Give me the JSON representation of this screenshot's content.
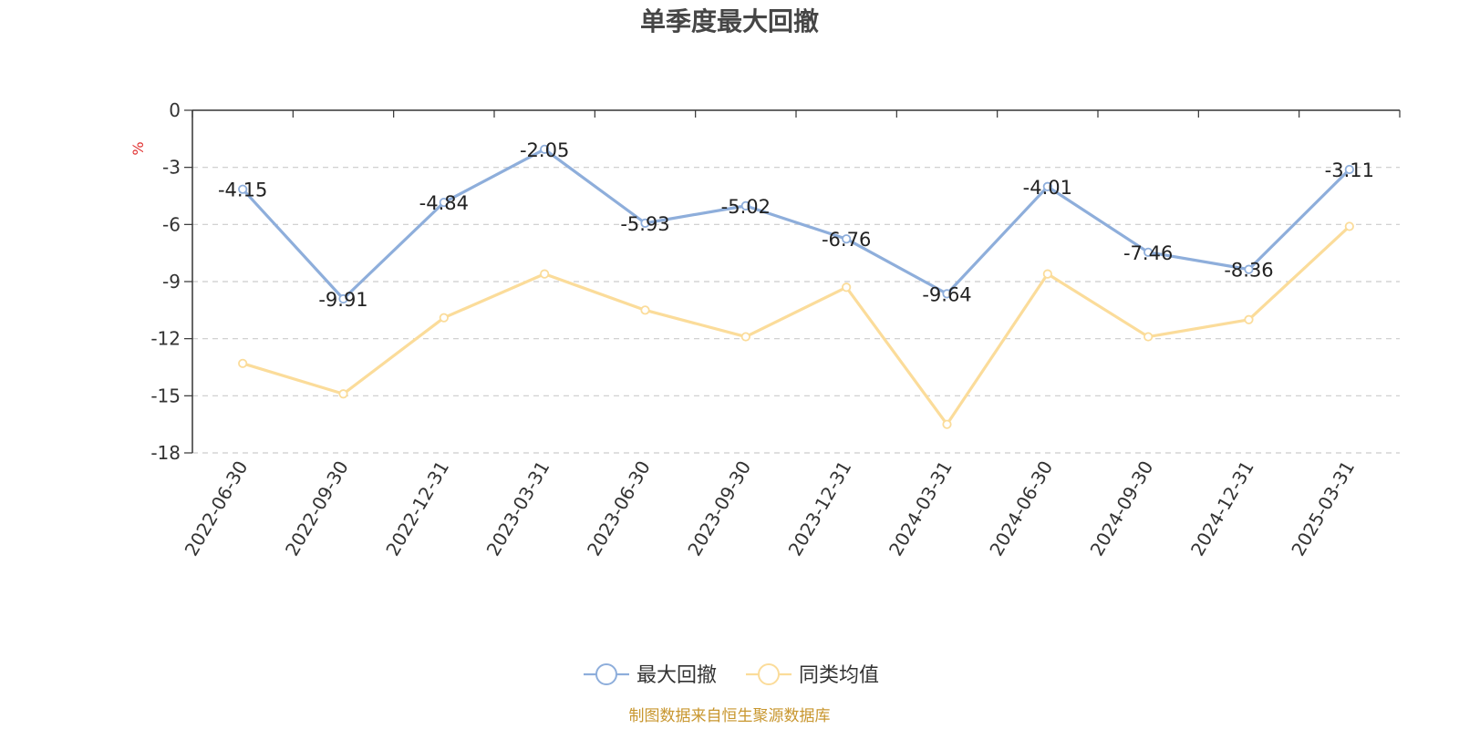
{
  "chart_data": {
    "type": "line",
    "title": "单季度最大回撤",
    "ylabel": "%",
    "xlabel": "",
    "categories": [
      "2022-06-30",
      "2022-09-30",
      "2022-12-31",
      "2023-03-31",
      "2023-06-30",
      "2023-09-30",
      "2023-12-31",
      "2024-03-31",
      "2024-06-30",
      "2024-09-30",
      "2024-12-31",
      "2025-03-31"
    ],
    "series": [
      {
        "name": "最大回撤",
        "color": "#8eaedb",
        "show_labels": true,
        "values": [
          -4.15,
          -9.91,
          -4.84,
          -2.05,
          -5.93,
          -5.02,
          -6.76,
          -9.64,
          -4.01,
          -7.46,
          -8.36,
          -3.11
        ]
      },
      {
        "name": "同类均值",
        "color": "#fbdc9a",
        "show_labels": false,
        "values": [
          -13.3,
          -14.9,
          -10.9,
          -8.6,
          -10.5,
          -11.9,
          -9.3,
          -16.5,
          -8.6,
          -11.9,
          -11.0,
          -6.1
        ]
      }
    ],
    "ylim": [
      -18,
      0
    ],
    "yticks": [
      0,
      -3,
      -6,
      -9,
      -12,
      -15,
      -18
    ],
    "grid": true,
    "legend_position": "bottom-center",
    "unit_color": "#e03030"
  },
  "source": {
    "text": "制图数据来自恒生聚源数据库",
    "color": "#c8962e"
  }
}
